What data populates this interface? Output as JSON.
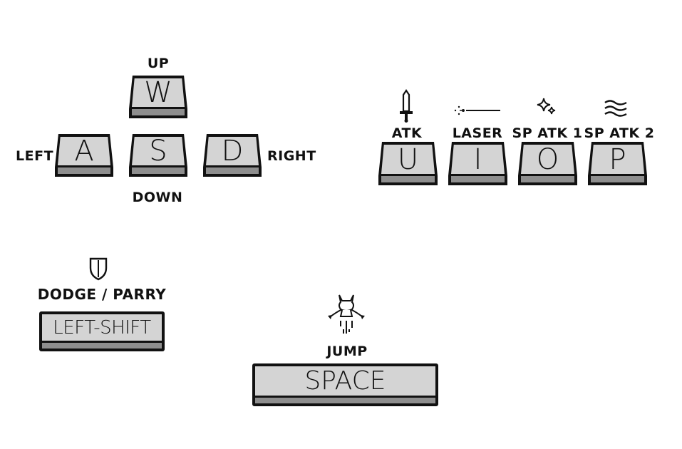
{
  "movement": {
    "up": {
      "key": "W",
      "label": "UP"
    },
    "left": {
      "key": "A",
      "label": "LEFT"
    },
    "down": {
      "key": "S",
      "label": "DOWN"
    },
    "right": {
      "key": "D",
      "label": "RIGHT"
    }
  },
  "actions": [
    {
      "key": "U",
      "label": "ATK",
      "icon": "sword-icon"
    },
    {
      "key": "I",
      "label": "LASER",
      "icon": "laser-icon"
    },
    {
      "key": "O",
      "label": "SP ATK 1",
      "icon": "sparkle-icon"
    },
    {
      "key": "P",
      "label": "SP ATK 2",
      "icon": "wave-icon"
    }
  ],
  "dodge": {
    "key": "LEFT-SHIFT",
    "label": "DODGE / PARRY",
    "icon": "shield-icon"
  },
  "jump": {
    "key": "SPACE",
    "label": "JUMP",
    "icon": "jumping-character-icon"
  },
  "colors": {
    "key_face": "#d4d4d4",
    "key_side": "#8e8e8e",
    "outline": "#111111"
  }
}
